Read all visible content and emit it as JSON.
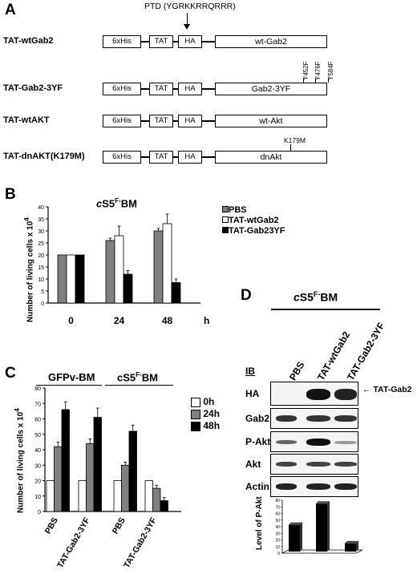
{
  "panelA": {
    "label": "A",
    "ptd": "PTD (YGRKKRRQRRR)",
    "constructs": [
      {
        "name": "TAT-wtGab2",
        "domains": [
          "6xHis",
          "TAT",
          "HA"
        ],
        "main": "wt-Gab2"
      },
      {
        "name": "TAT-Gab2-3YF",
        "domains": [
          "6xHis",
          "TAT",
          "HA"
        ],
        "main": "Gab2-3YF",
        "mutations": [
          "Y452F",
          "Y476F",
          "Y584F"
        ]
      },
      {
        "name": "TAT-wtAKT",
        "domains": [
          "6xHis",
          "TAT",
          "HA"
        ],
        "main": "wt-Akt"
      },
      {
        "name": "TAT-dnAKT(K179M)",
        "domains": [
          "6xHis",
          "TAT",
          "HA"
        ],
        "main": "dnAkt",
        "mutations": [
          "K179M"
        ]
      }
    ]
  },
  "panelB": {
    "label": "B",
    "title_prefix": "c",
    "title_main": "S5",
    "title_sup": "F-",
    "title_suffix": "BM",
    "ylabel": "Number of living cells x 10",
    "ylabel_exp": "4",
    "xunit": "h",
    "legend": [
      "PBS",
      "TAT-wtGab2",
      "TAT-Gab23YF"
    ]
  },
  "panelC": {
    "label": "C",
    "group_titles": [
      "GFPv-BM",
      "cS5F-BM"
    ],
    "ylabel": "Number of living cells x 10",
    "ylabel_exp": "4",
    "legend": [
      "0h",
      "24h",
      "48h"
    ]
  },
  "panelD": {
    "label": "D",
    "title_prefix": "c",
    "title_main": "S5",
    "title_sup": "F-",
    "title_suffix": "BM",
    "ib": "IB",
    "lanes": [
      "PBS",
      "TAT-wtGab2",
      "TAT-Gab2-3YF"
    ],
    "rows": [
      "HA",
      "Gab2",
      "P-Akt",
      "Akt",
      "Actin"
    ],
    "arrow_label": "TAT-Gab2",
    "bar_ylabel": "Level of P-Akt"
  },
  "chart_data": [
    {
      "type": "bar",
      "panel": "B",
      "categories": [
        "0",
        "24",
        "48"
      ],
      "series": [
        {
          "name": "PBS",
          "values": [
            20,
            26,
            30
          ],
          "errors": [
            0,
            1,
            1
          ],
          "color": "#808080"
        },
        {
          "name": "TAT-wtGab2",
          "values": [
            20,
            28,
            33
          ],
          "errors": [
            0,
            4,
            4
          ],
          "color": "#ffffff"
        },
        {
          "name": "TAT-Gab23YF",
          "values": [
            20,
            12,
            8.5
          ],
          "errors": [
            0,
            1.5,
            1.5
          ],
          "color": "#000000"
        }
      ],
      "ylim": [
        0,
        40
      ],
      "yticks": [
        0,
        5,
        10,
        15,
        20,
        25,
        30,
        35,
        40
      ]
    },
    {
      "type": "bar",
      "panel": "C",
      "categories": [
        "PBS",
        "TAT-Gab2-3YF",
        "PBS",
        "TAT-Gab2-3YF"
      ],
      "series": [
        {
          "name": "0h",
          "values": [
            20,
            20,
            20,
            20
          ],
          "errors": [
            0,
            0,
            0,
            0
          ],
          "color": "#ffffff"
        },
        {
          "name": "24h",
          "values": [
            42,
            44,
            30,
            15
          ],
          "errors": [
            3,
            3,
            2,
            2
          ],
          "color": "#808080"
        },
        {
          "name": "48h",
          "values": [
            66,
            61,
            52,
            7
          ],
          "errors": [
            5,
            6,
            4,
            2
          ],
          "color": "#000000"
        }
      ],
      "ylim": [
        0,
        80
      ],
      "yticks": [
        0,
        10,
        20,
        30,
        40,
        50,
        60,
        70,
        80
      ]
    },
    {
      "type": "bar",
      "panel": "D",
      "categories": [
        "PBS",
        "TAT-wtGab2",
        "TAT-Gab2-3YF"
      ],
      "values": [
        40,
        72,
        12
      ],
      "ylim": [
        0,
        80
      ],
      "yticks": [
        0,
        10,
        20,
        30,
        40,
        50,
        60,
        70,
        80
      ]
    }
  ]
}
